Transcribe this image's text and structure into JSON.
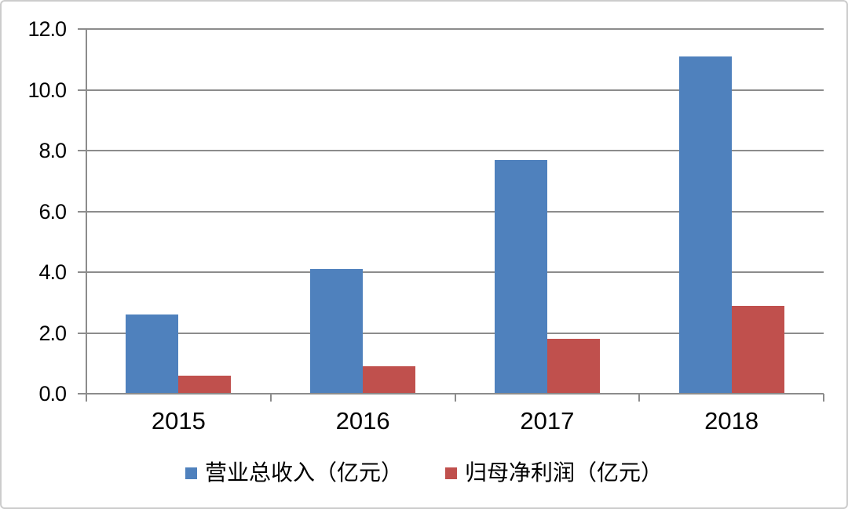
{
  "figure": {
    "background": "#FFFFFF",
    "border_color": "#CCCCCC",
    "text_color": "#000000"
  },
  "chart_data": {
    "type": "bar",
    "categories": [
      "2015",
      "2016",
      "2017",
      "2018"
    ],
    "series": [
      {
        "name": "营业总收入（亿元）",
        "color": "#4F81BD",
        "values": [
          2.6,
          4.1,
          7.7,
          11.1
        ]
      },
      {
        "name": "归母净利润（亿元）",
        "color": "#C0504D",
        "values": [
          0.6,
          0.9,
          1.8,
          2.9
        ]
      }
    ],
    "ylim": [
      0,
      12
    ],
    "ytick_step": 2,
    "ytick_labels": [
      "0.0",
      "2.0",
      "4.0",
      "6.0",
      "8.0",
      "10.0",
      "12.0"
    ],
    "grid": true,
    "gridline_color": "#8C8C8C",
    "axis_color": "#8C8C8C",
    "legend_position": "bottom"
  }
}
